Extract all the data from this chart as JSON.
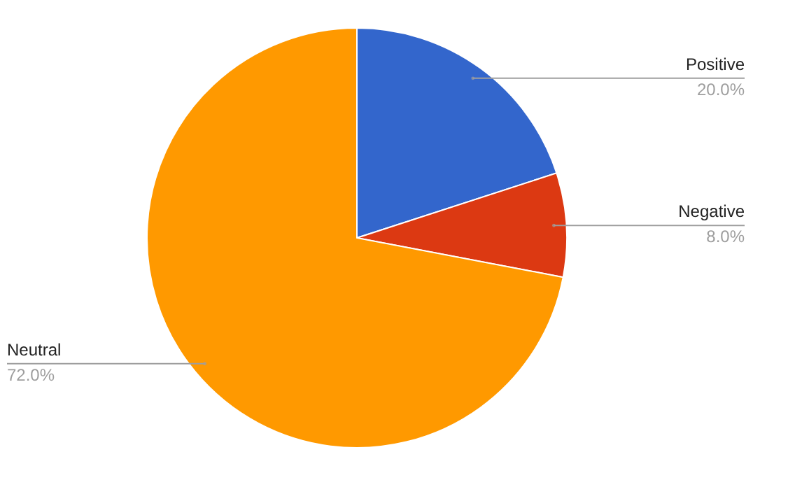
{
  "chart_data": {
    "type": "pie",
    "categories": [
      "Positive",
      "Negative",
      "Neutral"
    ],
    "values": [
      20,
      8,
      72
    ],
    "colors": [
      "#3366cc",
      "#dc3912",
      "#ff9900"
    ],
    "value_labels": [
      "20.0%",
      "8.0%",
      "72.0%"
    ]
  }
}
